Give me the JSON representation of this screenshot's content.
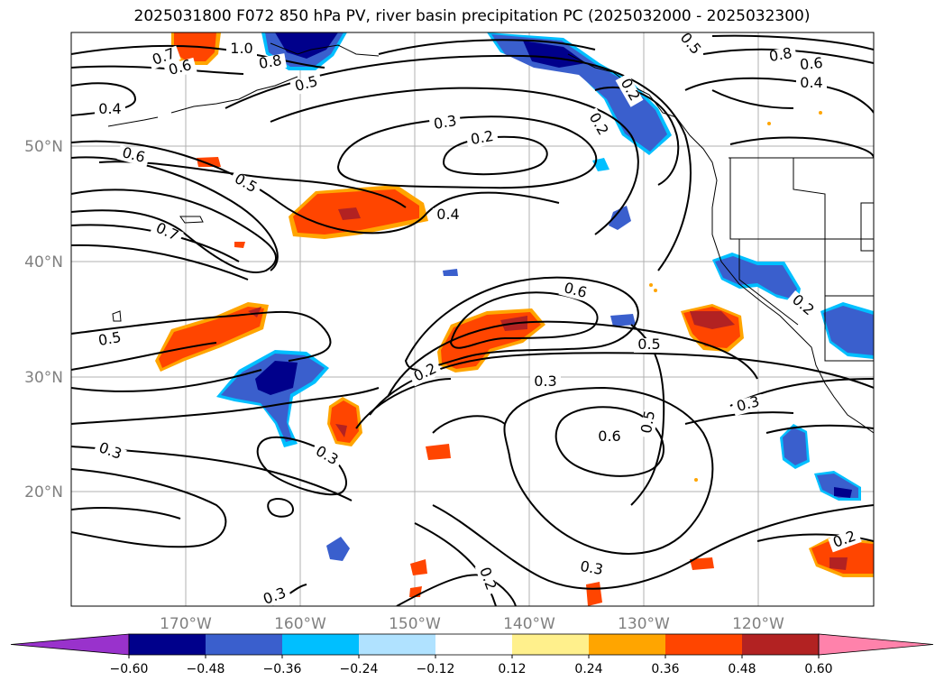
{
  "title": "2025031800 F072 850 hPa PV, river basin precipitation PC (2025032000 - 2025032300)",
  "map": {
    "lon_labels": [
      "170°W",
      "160°W",
      "150°W",
      "140°W",
      "130°W",
      "120°W"
    ],
    "lat_labels": [
      "50°N",
      "40°N",
      "30°N",
      "20°N"
    ]
  },
  "contour_labels": [
    {
      "text": "1.0"
    },
    {
      "text": "0.7"
    },
    {
      "text": "0.6"
    },
    {
      "text": "0.8"
    },
    {
      "text": "0.5"
    },
    {
      "text": "0.4"
    },
    {
      "text": "0.8"
    },
    {
      "text": "0.6"
    },
    {
      "text": "0.4"
    },
    {
      "text": "0.5"
    },
    {
      "text": "0.3"
    },
    {
      "text": "0.2"
    },
    {
      "text": "0.6"
    },
    {
      "text": "0.5"
    },
    {
      "text": "0.7"
    },
    {
      "text": "0.4"
    },
    {
      "text": "0.6"
    },
    {
      "text": "0.5"
    },
    {
      "text": "0.2"
    },
    {
      "text": "0.3"
    },
    {
      "text": "0.5"
    },
    {
      "text": "0.2"
    },
    {
      "text": "0.3"
    },
    {
      "text": "0.6"
    },
    {
      "text": "0.5"
    },
    {
      "text": "0.3"
    },
    {
      "text": "0.3"
    },
    {
      "text": "0.3"
    },
    {
      "text": "0.3"
    },
    {
      "text": "0.2"
    },
    {
      "text": "0.2"
    },
    {
      "text": "0.2"
    },
    {
      "text": "0.2"
    }
  ],
  "colorbar": {
    "colors": [
      "#9932cc",
      "#00008b",
      "#3a5fcd",
      "#00bfff",
      "#b0e2ff",
      "#ffffff",
      "#fff08c",
      "#ffa500",
      "#ff4500",
      "#b22222",
      "#ff82ab"
    ],
    "ticks": [
      "−0.60",
      "−0.48",
      "−0.36",
      "−0.24",
      "−0.12",
      "0.12",
      "0.24",
      "0.36",
      "0.48",
      "0.60"
    ]
  }
}
